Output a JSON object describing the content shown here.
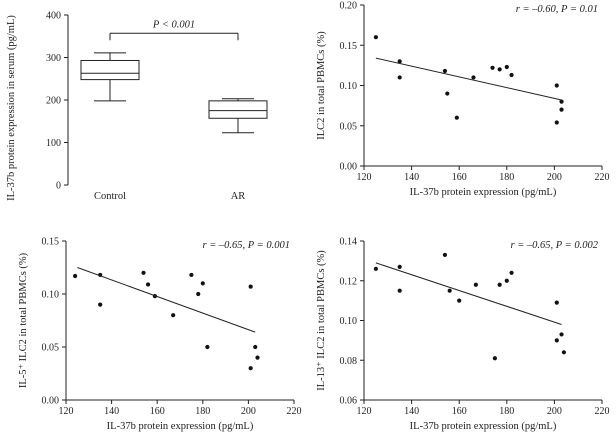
{
  "chart_data": [
    {
      "id": "a",
      "type": "box",
      "title": "",
      "xlabel": "",
      "ylabel": "IL-37b protein expression in serum (pg/mL)",
      "ylim": [
        0,
        400
      ],
      "yticks": [
        0,
        100,
        200,
        300,
        400
      ],
      "yticklabels": [
        "0",
        "100",
        "200",
        "300",
        "400"
      ],
      "categories": [
        "Control",
        "AR"
      ],
      "boxes": [
        {
          "name": "Control",
          "min": 198,
          "q1": 248,
          "median": 263,
          "q3": 293,
          "max": 311
        },
        {
          "name": "AR",
          "min": 123,
          "q1": 157,
          "median": 175,
          "q3": 198,
          "max": 203
        }
      ],
      "annotation": {
        "text": "P < 0.001",
        "between": [
          "Control",
          "AR"
        ],
        "y": 357
      }
    },
    {
      "id": "b",
      "type": "scatter",
      "xlabel": "IL-37b protein expression (pg/mL)",
      "ylabel": "ILC2 in total PBMCs (%)",
      "xlim": [
        120,
        220
      ],
      "ylim": [
        0,
        0.2
      ],
      "xticks": [
        120,
        140,
        160,
        180,
        200,
        220
      ],
      "xticklabels": [
        "120",
        "140",
        "160",
        "180",
        "200",
        "220"
      ],
      "yticks": [
        0,
        0.05,
        0.1,
        0.15,
        0.2
      ],
      "yticklabels": [
        "0.00",
        "0.05",
        "0.10",
        "0.15",
        "0.20"
      ],
      "annotation": "r = –0.60, P = 0.01",
      "points": [
        [
          125,
          0.16
        ],
        [
          135,
          0.13
        ],
        [
          135,
          0.11
        ],
        [
          154,
          0.118
        ],
        [
          155,
          0.09
        ],
        [
          159,
          0.06
        ],
        [
          166,
          0.11
        ],
        [
          174,
          0.122
        ],
        [
          177,
          0.12
        ],
        [
          180,
          0.123
        ],
        [
          182,
          0.113
        ],
        [
          201,
          0.1
        ],
        [
          201,
          0.054
        ],
        [
          203,
          0.08
        ],
        [
          203,
          0.07
        ]
      ],
      "fit": {
        "x": [
          125,
          203
        ],
        "y": [
          0.134,
          0.082
        ]
      }
    },
    {
      "id": "c",
      "type": "scatter",
      "xlabel": "IL-37b protein expression (pg/mL)",
      "ylabel": "IL-5⁺ ILC2 in total PBMCs (%)",
      "xlim": [
        120,
        220
      ],
      "ylim": [
        0,
        0.15
      ],
      "xticks": [
        120,
        140,
        160,
        180,
        200,
        220
      ],
      "xticklabels": [
        "120",
        "140",
        "160",
        "180",
        "200",
        "220"
      ],
      "yticks": [
        0,
        0.05,
        0.1,
        0.15
      ],
      "yticklabels": [
        "0.00",
        "0.05",
        "0.10",
        "0.15"
      ],
      "annotation": "r = –0.65, P = 0.001",
      "points": [
        [
          124,
          0.117
        ],
        [
          135,
          0.118
        ],
        [
          135,
          0.09
        ],
        [
          154,
          0.12
        ],
        [
          156,
          0.109
        ],
        [
          159,
          0.098
        ],
        [
          167,
          0.08
        ],
        [
          175,
          0.118
        ],
        [
          178,
          0.1
        ],
        [
          180,
          0.11
        ],
        [
          182,
          0.05
        ],
        [
          201,
          0.107
        ],
        [
          201,
          0.03
        ],
        [
          203,
          0.05
        ],
        [
          204,
          0.04
        ]
      ],
      "fit": {
        "x": [
          125,
          203
        ],
        "y": [
          0.125,
          0.064
        ]
      }
    },
    {
      "id": "d",
      "type": "scatter",
      "xlabel": "IL-37b protein expression (pg/mL)",
      "ylabel": "IL-13⁺ ILC2 in total PBMCs (%)",
      "xlim": [
        120,
        220
      ],
      "ylim": [
        0.06,
        0.14
      ],
      "xticks": [
        120,
        140,
        160,
        180,
        200,
        220
      ],
      "xticklabels": [
        "120",
        "140",
        "160",
        "180",
        "200",
        "220"
      ],
      "yticks": [
        0.06,
        0.08,
        0.1,
        0.12,
        0.14
      ],
      "yticklabels": [
        "0.06",
        "0.08",
        "0.10",
        "0.12",
        "0.14"
      ],
      "annotation": "r = –0.65, P = 0.002",
      "points": [
        [
          125,
          0.126
        ],
        [
          135,
          0.127
        ],
        [
          135,
          0.115
        ],
        [
          154,
          0.133
        ],
        [
          156,
          0.115
        ],
        [
          160,
          0.11
        ],
        [
          167,
          0.118
        ],
        [
          175,
          0.081
        ],
        [
          177,
          0.118
        ],
        [
          180,
          0.12
        ],
        [
          182,
          0.124
        ],
        [
          201,
          0.109
        ],
        [
          201,
          0.09
        ],
        [
          203,
          0.093
        ],
        [
          204,
          0.084
        ]
      ],
      "fit": {
        "x": [
          125,
          203
        ],
        "y": [
          0.129,
          0.098
        ]
      }
    }
  ]
}
